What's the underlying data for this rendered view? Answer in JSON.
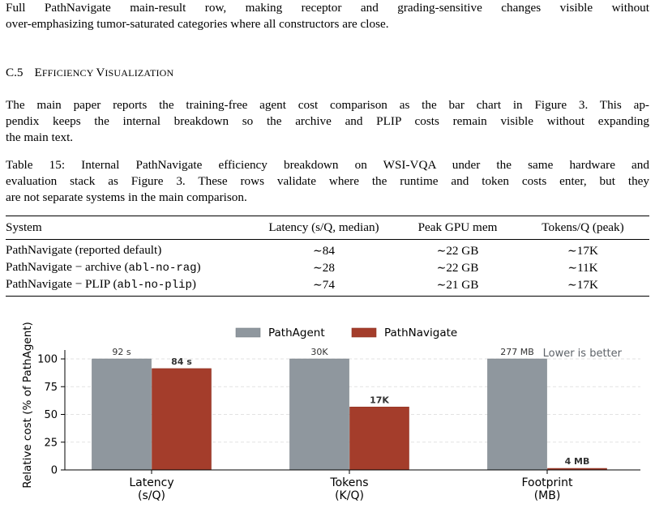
{
  "intro_paragraph": {
    "lines": [
      "Full PathNavigate main-result row, making receptor and grading-sensitive changes visible without",
      "over-emphasizing tumor-saturated categories where all constructors are close."
    ]
  },
  "section": {
    "number": "C.5",
    "title_first_cap": "E",
    "title_rest_1": "FFICIENCY ",
    "title_second_cap": "V",
    "title_rest_2": "ISUALIZATION"
  },
  "body_paragraph": {
    "lines": [
      "The main paper reports the training-free agent cost comparison as the bar chart in Figure 3. This ap-",
      "pendix keeps the internal breakdown so the archive and PLIP costs remain visible without expanding",
      "the main text."
    ]
  },
  "table": {
    "caption_lines": [
      "Table 15: Internal PathNavigate efficiency breakdown on WSI-VQA under the same hardware and",
      "evaluation stack as Figure 3. These rows validate where the runtime and token costs enter, but they",
      "are not separate systems in the main comparison."
    ],
    "headers": [
      "System",
      "Latency (s/Q, median)",
      "Peak GPU mem",
      "Tokens/Q (peak)"
    ],
    "tilde": "∼",
    "rows": [
      {
        "system": "PathNavigate (reported default)",
        "system_code": "",
        "system_close": "",
        "latency": "84",
        "gpu": "22 GB",
        "tokens": "17K"
      },
      {
        "system": "PathNavigate − archive (",
        "system_code": "abl-no-rag",
        "system_close": ")",
        "latency": "28",
        "gpu": "22 GB",
        "tokens": "11K"
      },
      {
        "system": "PathNavigate − PLIP (",
        "system_code": "abl-no-plip",
        "system_close": ")",
        "latency": "74",
        "gpu": "21 GB",
        "tokens": "17K"
      }
    ]
  },
  "chart_data": {
    "type": "bar",
    "ylabel": "Relative cost (% of PathAgent)",
    "ylim": [
      0,
      110
    ],
    "yticks": [
      0,
      25,
      50,
      75,
      100
    ],
    "grid": true,
    "legend_placement": "top-center",
    "annotation": "Lower is better",
    "categories": [
      "Latency\n(s/Q)",
      "Tokens\n(K/Q)",
      "Footprint\n(MB)"
    ],
    "category_lines": [
      [
        "Latency",
        "(s/Q)"
      ],
      [
        "Tokens",
        "(K/Q)"
      ],
      [
        "Footprint",
        "(MB)"
      ]
    ],
    "series": [
      {
        "name": "PathAgent",
        "color": "#8f979e",
        "values": [
          100,
          100,
          100
        ],
        "labels": [
          "92 s",
          "30K",
          "277 MB"
        ],
        "label_bold": false
      },
      {
        "name": "PathNavigate",
        "color": "#a43d2b",
        "values": [
          91.3,
          56.7,
          1.4
        ],
        "labels": [
          "84 s",
          "17K",
          "4 MB"
        ],
        "label_bold": true
      }
    ]
  }
}
